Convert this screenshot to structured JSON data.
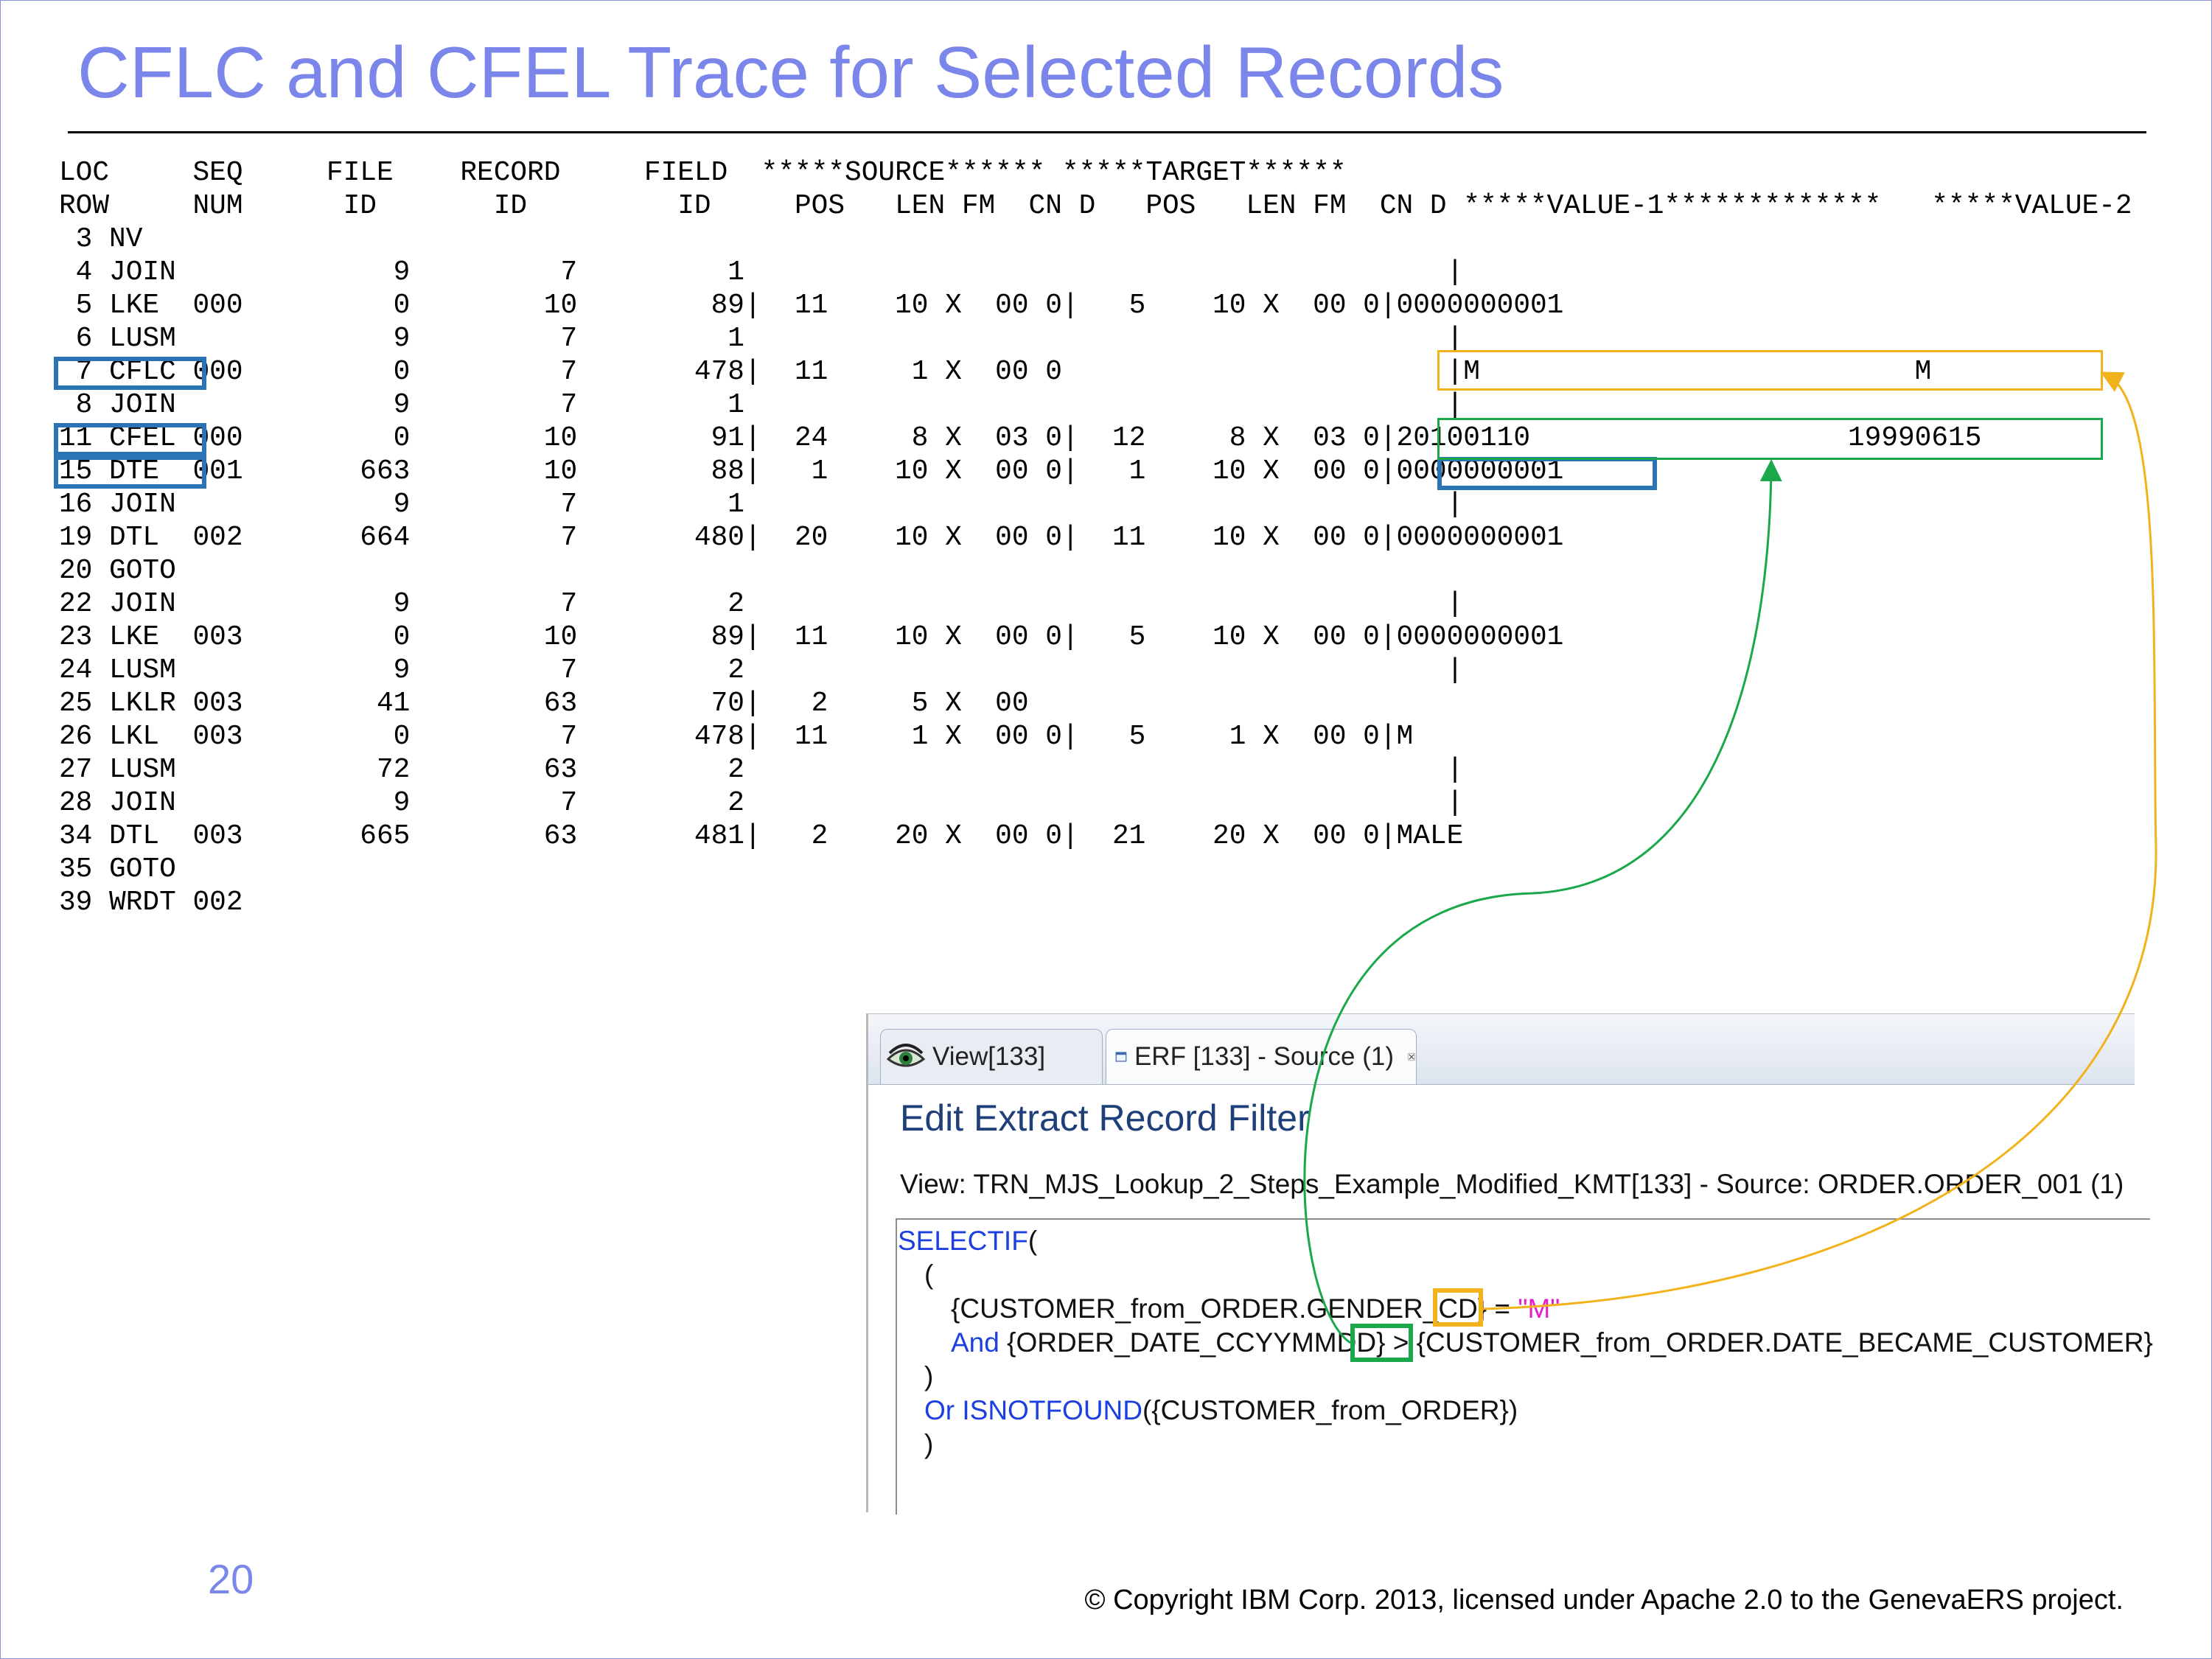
{
  "title": "CFLC and CFEL Trace for Selected Records",
  "trace": {
    "header_lines": [
      "LOC     SEQ     FILE    RECORD     FIELD  *****SOURCE****** *****TARGET******",
      "ROW     NUM      ID       ID         ID     POS   LEN FM  CN D   POS   LEN FM  CN D *****VALUE-1*************   *****VALUE-2"
    ],
    "rows": [
      " 3 NV",
      " 4 JOIN             9         7         1                                          |",
      " 5 LKE  000         0        10        89|  11    10 X  00 0|   5    10 X  00 0|0000000001",
      " 6 LUSM             9         7         1                                          |",
      " 7 CFLC 000         0         7       478|  11     1 X  00 0                       |M                          M",
      " 8 JOIN             9         7         1                                          |",
      "11 CFEL 000         0        10        91|  24     8 X  03 0|  12     8 X  03 0|20100110                   19990615",
      "15 DTE  001       663        10        88|   1    10 X  00 0|   1    10 X  00 0|0000000001",
      "16 JOIN             9         7         1                                          |",
      "19 DTL  002       664         7       480|  20    10 X  00 0|  11    10 X  00 0|0000000001",
      "20 GOTO",
      "22 JOIN             9         7         2                                          |",
      "23 LKE  003         0        10        89|  11    10 X  00 0|   5    10 X  00 0|0000000001",
      "24 LUSM             9         7         2                                          |",
      "25 LKLR 003        41        63        70|   2     5 X  00",
      "26 LKL  003         0         7       478|  11     1 X  00 0|   5     1 X  00 0|M",
      "27 LUSM            72        63         2                                          |",
      "28 JOIN             9         7         2                                          |",
      "34 DTL  003       665        63       481|   2    20 X  00 0|  21    20 X  00 0|MALE",
      "35 GOTO",
      "39 WRDT 002"
    ]
  },
  "panel": {
    "tabs": [
      {
        "label": "View[133]",
        "icon": "eye-icon"
      },
      {
        "label": "ERF [133] - Source (1)",
        "icon": "window-icon",
        "close_icon": "close-icon"
      }
    ],
    "heading": "Edit Extract Record Filter",
    "view_line": "View: TRN_MJS_Lookup_2_Steps_Example_Modified_KMT[133] - Source: ORDER.ORDER_001 (1)",
    "code": {
      "l1_kw": "SELECTIF",
      "l1_rest": "(",
      "l2": "(",
      "l3_field": "{CUSTOMER_from_ORDER.GENDER_CD}",
      "l3_op": " = ",
      "l3_str": "\"M\"",
      "l4_kw": "And",
      "l4_field1": " {ORDER_DATE_CCYYMMDD}",
      "l4_op": " > ",
      "l4_field2": "{CUSTOMER_from_ORDER.DATE_BECAME_CUSTOMER}",
      "l5": ")",
      "l6_kw": "Or ISNOTFOUND",
      "l6_rest": "({CUSTOMER_from_ORDER})",
      "l7": ")"
    }
  },
  "colors": {
    "title": "#7b86ea",
    "highlight_blue": "#2a73b5",
    "highlight_orange": "#f2b21c",
    "highlight_green": "#1aa84a",
    "keyword": "#1c3fe0",
    "string": "#e020c8"
  },
  "footer": {
    "page_number": "20",
    "copyright": "© Copyright IBM Corp. 2013, licensed under Apache 2.0 to the GenevaERS project."
  }
}
